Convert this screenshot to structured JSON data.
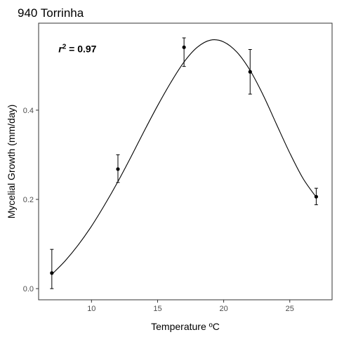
{
  "chart_data": {
    "type": "scatter",
    "title": "940 Torrinha",
    "xlabel": "Temperature ºC",
    "ylabel": "Mycelial Growth (mm/day)",
    "xlim": [
      6.0,
      28.2
    ],
    "ylim": [
      -0.025,
      0.595
    ],
    "x_ticks": [
      10,
      15,
      20,
      25
    ],
    "y_ticks": [
      0.0,
      0.2,
      0.4
    ],
    "x_tick_labels": [
      "10",
      "15",
      "20",
      "25"
    ],
    "y_tick_labels": [
      "0.0",
      "0.2",
      "0.4"
    ],
    "grid": false,
    "legend": "none",
    "annotation": {
      "r_symbol": "r",
      "superscript": "2",
      "value_text": " = 0.97",
      "x": 7.5,
      "y": 0.53
    },
    "points": [
      {
        "x": 7,
        "y": 0.035,
        "err_low": 0.0,
        "err_high": 0.088
      },
      {
        "x": 12,
        "y": 0.268,
        "err_low": 0.238,
        "err_high": 0.3
      },
      {
        "x": 17,
        "y": 0.541,
        "err_low": 0.498,
        "err_high": 0.562
      },
      {
        "x": 22,
        "y": 0.486,
        "err_low": 0.436,
        "err_high": 0.536
      },
      {
        "x": 27,
        "y": 0.206,
        "err_low": 0.188,
        "err_high": 0.225
      }
    ],
    "fit_curve": {
      "x": [
        7,
        8,
        9,
        10,
        11,
        12,
        13,
        14,
        15,
        16,
        17,
        18,
        19,
        20,
        21,
        22,
        23,
        24,
        25,
        26,
        27
      ],
      "y": [
        0.032,
        0.062,
        0.098,
        0.14,
        0.188,
        0.24,
        0.296,
        0.354,
        0.41,
        0.462,
        0.508,
        0.541,
        0.557,
        0.553,
        0.53,
        0.489,
        0.433,
        0.368,
        0.304,
        0.247,
        0.205
      ]
    },
    "colors": {
      "point": "#000000",
      "line": "#000000",
      "axis": "#333333",
      "tick_text": "#4d4d4d"
    }
  }
}
